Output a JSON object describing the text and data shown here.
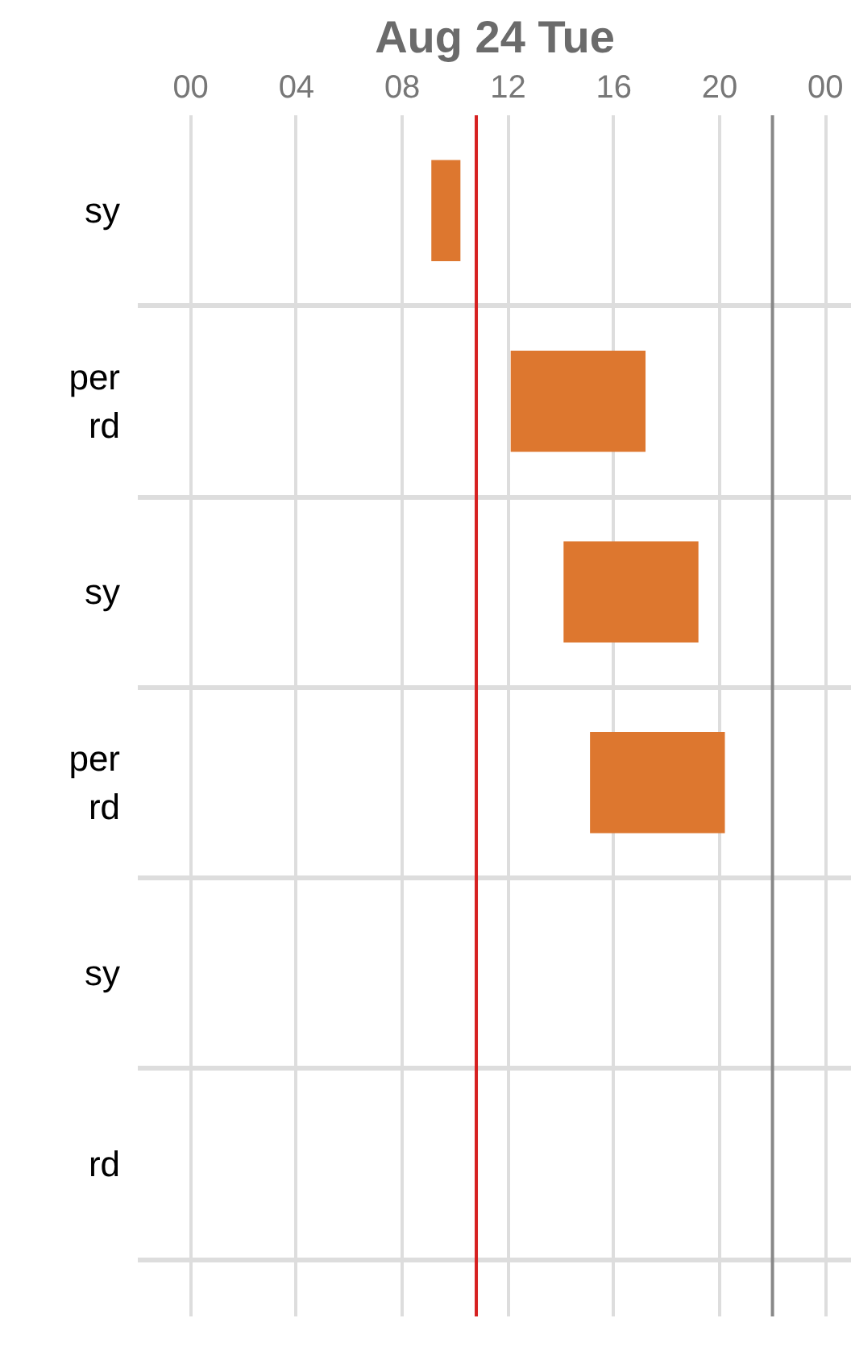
{
  "chart_data": {
    "type": "bar",
    "orientation": "horizontal",
    "title": "Aug 24 Tue",
    "categories": [
      "sy",
      "per\nrd",
      "sy",
      "per\nrd",
      "sy",
      "rd",
      null
    ],
    "values": [
      1.1,
      5.1,
      5.1,
      5.1,
      null,
      null,
      null
    ],
    "base": [
      9.1,
      12.1,
      14.1,
      15.1,
      null,
      null,
      null
    ],
    "color": "#dd772f",
    "xlim": [
      -2,
      25
    ],
    "xticks": [
      {
        "value": 0,
        "label": "00"
      },
      {
        "value": 4,
        "label": "04"
      },
      {
        "value": 8,
        "label": "08"
      },
      {
        "value": 12,
        "label": "12"
      },
      {
        "value": 16,
        "label": "16"
      },
      {
        "value": 20,
        "label": "20"
      },
      {
        "value": 24,
        "label": "00"
      }
    ],
    "grid": true,
    "ref_lines": [
      {
        "axis": "x",
        "value": 10.8,
        "color": "#d62020"
      },
      {
        "axis": "x",
        "value": 22,
        "color": "#888888"
      }
    ]
  }
}
